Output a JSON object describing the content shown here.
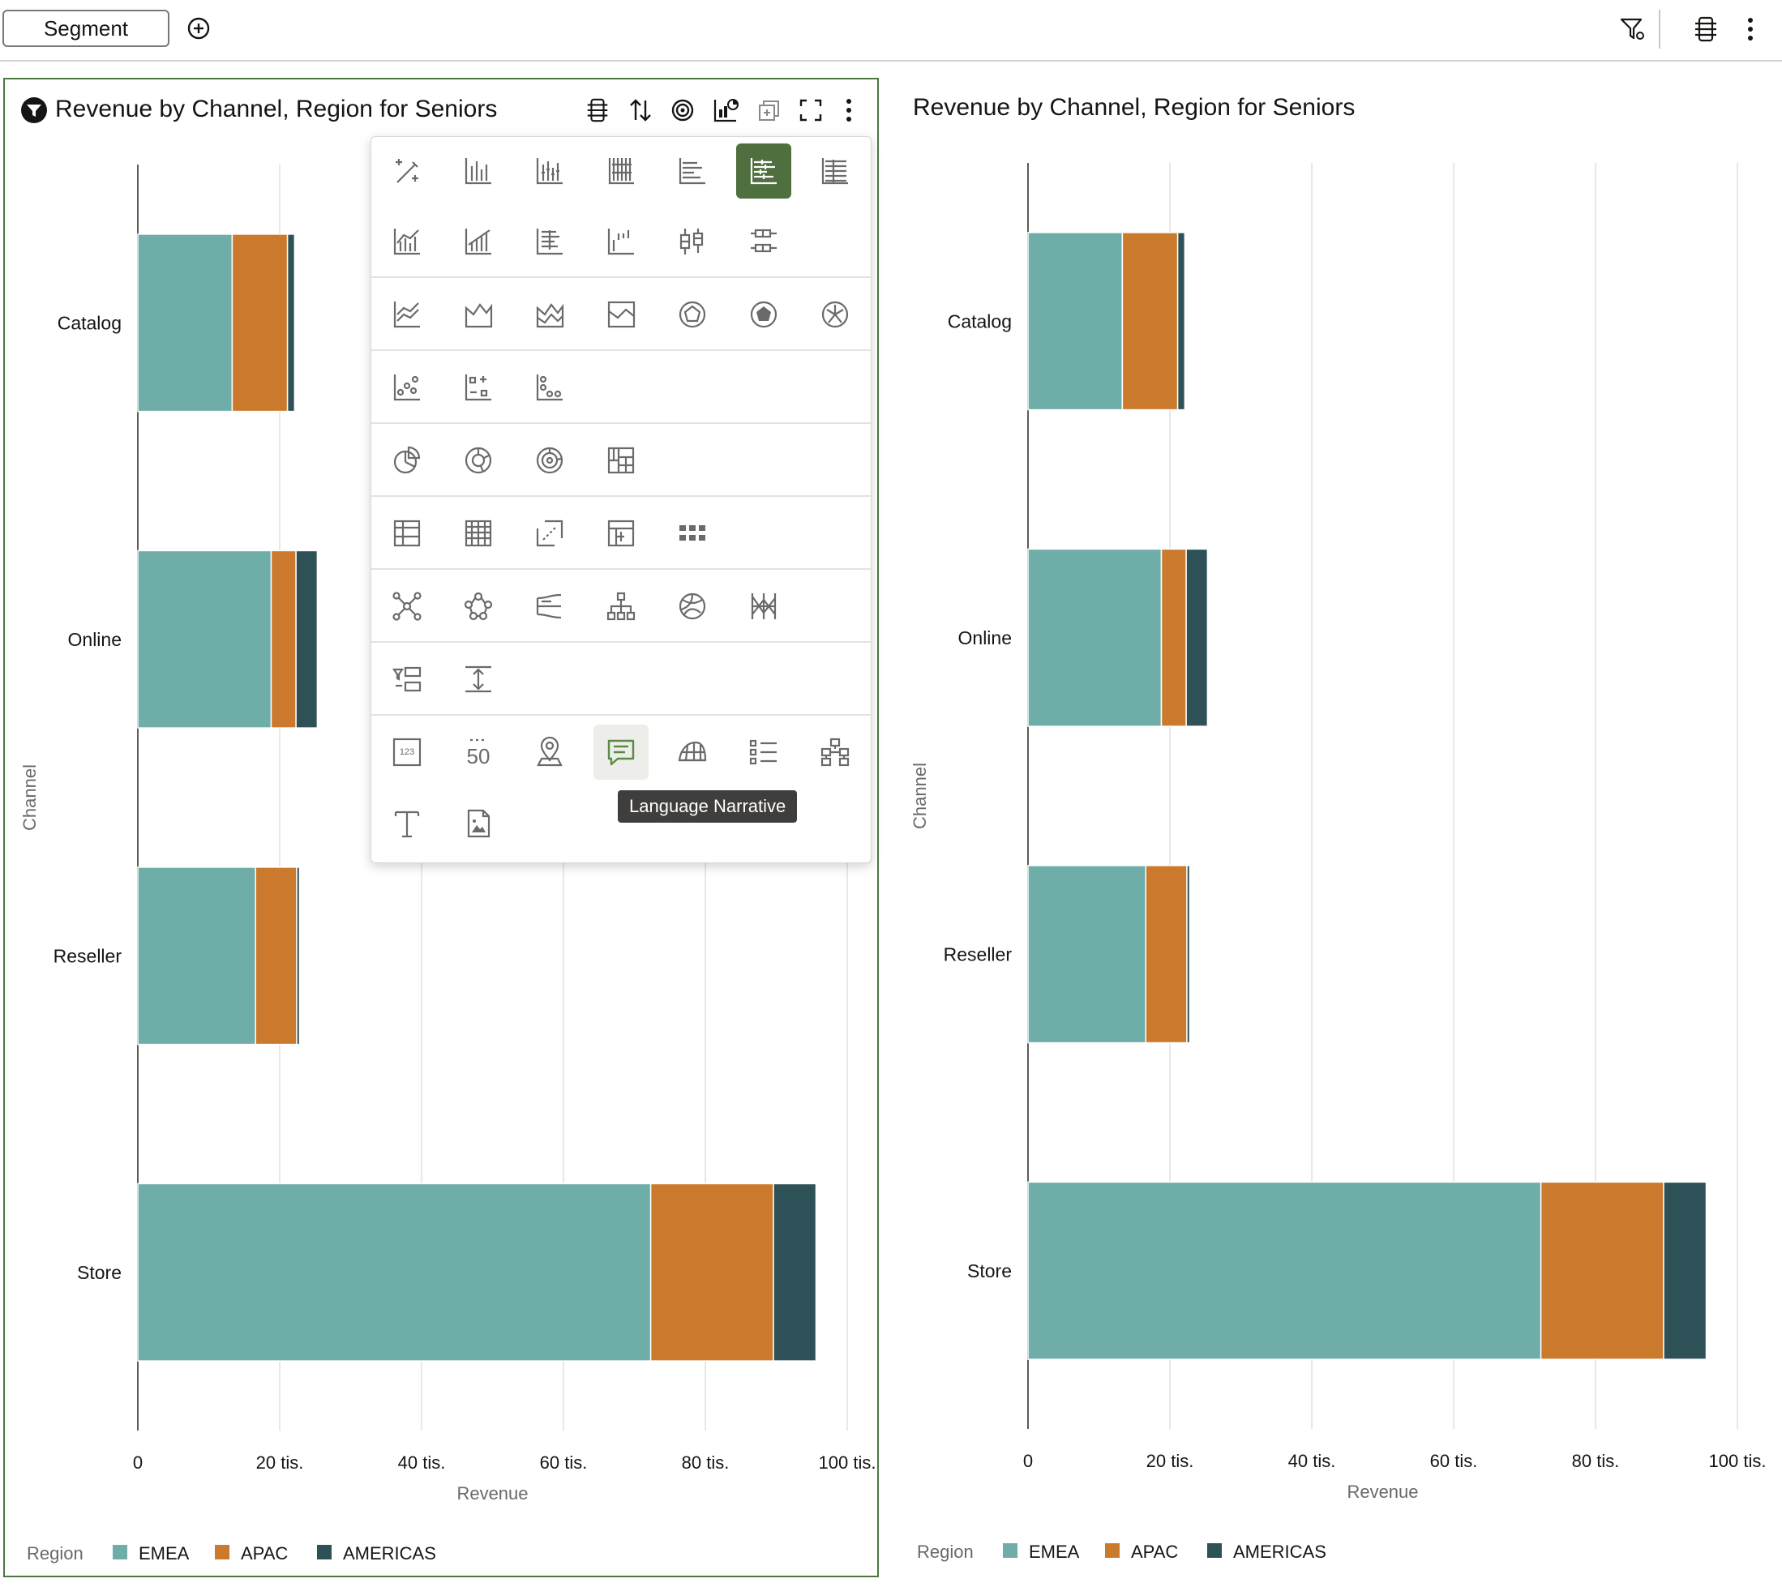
{
  "toolbar": {
    "segment_label": "Segment",
    "add_icon": "plus-circle-icon",
    "filter_icon": "filter-settings-icon",
    "properties_icon": "properties-icon",
    "more_icon": "kebab-icon"
  },
  "left_panel": {
    "title": "Revenue by Channel, Region for Seniors",
    "title_icon": "filter-funnel-badge-icon",
    "header_icons": [
      "properties-icon",
      "sort-icon",
      "target-icon",
      "chart-type-icon",
      "duplicate-icon",
      "maximize-icon",
      "kebab-icon"
    ]
  },
  "right_panel": {
    "title": "Revenue by Channel, Region for Seniors"
  },
  "chart_menu": {
    "tooltip": "Language Narrative",
    "rows": [
      [
        "auto-visualization-icon",
        "bar-icon",
        "stacked-bar-icon",
        "100pct-stacked-bar-icon",
        "horizontal-bar-icon",
        "horizontal-stacked-bar-icon",
        "horizontal-100pct-stacked-bar-icon"
      ],
      [
        "combo-bar-line-icon",
        "combo-stacked-icon",
        "stacked-horizontal-combo-icon",
        "waterfall-icon",
        "boxplot-icon",
        "horizontal-boxplot-icon"
      ],
      [
        "line-icon",
        "area-icon",
        "stacked-area-icon",
        "100pct-area-icon",
        "radar-line-icon",
        "radar-area-icon",
        "radar-bar-icon"
      ],
      [
        "scatter-icon",
        "bubble-grid-icon",
        "dot-plot-icon"
      ],
      [
        "pie-icon",
        "donut-icon",
        "sunburst-icon",
        "treemap-icon"
      ],
      [
        "table-icon",
        "pivot-icon",
        "correlation-matrix-icon",
        "heat-matrix-icon",
        "tile-grid-icon"
      ],
      [
        "network-icon",
        "graph-icon",
        "sankey-icon",
        "tree-diagram-icon",
        "chord-icon",
        "parallel-coordinates-icon"
      ],
      [
        "list-filter-icon",
        "slider-icon"
      ],
      [
        "tile-icon",
        "performance-tile-icon",
        "map-icon",
        "language-narrative-icon",
        "map-layer-icon",
        "list-view-icon",
        "network-diagram-icon"
      ],
      [
        "text-box-icon",
        "image-icon"
      ]
    ]
  },
  "chart_data": {
    "type": "bar",
    "orientation": "horizontal",
    "stacked": true,
    "categories": [
      "Catalog",
      "Online",
      "Reseller",
      "Store"
    ],
    "series": [
      {
        "name": "EMEA",
        "color": "#6fada9",
        "values": [
          13300,
          18800,
          16600,
          72300
        ]
      },
      {
        "name": "APAC",
        "color": "#cb7a2d",
        "values": [
          7800,
          3500,
          5800,
          17300
        ]
      },
      {
        "name": "AMERICAS",
        "color": "#2e5057",
        "values": [
          1000,
          3000,
          400,
          6000
        ]
      }
    ],
    "xlabel": "Revenue",
    "ylabel": "Channel",
    "xlim": [
      0,
      100000
    ],
    "xticks": [
      "0",
      "20 tis.",
      "40 tis.",
      "60 tis.",
      "80 tis.",
      "100 tis."
    ],
    "legend_title": "Region",
    "legend_position": "bottom",
    "grid": true
  }
}
